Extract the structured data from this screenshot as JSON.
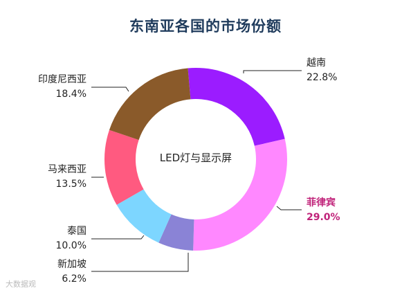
{
  "chart_data": {
    "type": "pie",
    "donut": true,
    "title": "东南亚各国的市场份额",
    "center_label": "LED灯与显示屏",
    "slices": [
      {
        "label": "越南",
        "value": 22.8,
        "value_text": "22.8%",
        "color": "#9b1cff"
      },
      {
        "label": "菲律宾",
        "value": 29.0,
        "value_text": "29.0%",
        "color": "#ff88ff",
        "highlight": true
      },
      {
        "label": "新加坡",
        "value": 6.2,
        "value_text": "6.2%",
        "color": "#8a83d6"
      },
      {
        "label": "泰国",
        "value": 10.0,
        "value_text": "10.0%",
        "color": "#7dd6ff"
      },
      {
        "label": "马来西亚",
        "value": 13.5,
        "value_text": "13.5%",
        "color": "#ff5a80"
      },
      {
        "label": "印度尼西亚",
        "value": 18.4,
        "value_text": "18.4%",
        "color": "#8a5a2a"
      }
    ],
    "highlight_color": "#c0237a",
    "title_color": "#1f3b5c"
  },
  "watermark": "大数据观"
}
